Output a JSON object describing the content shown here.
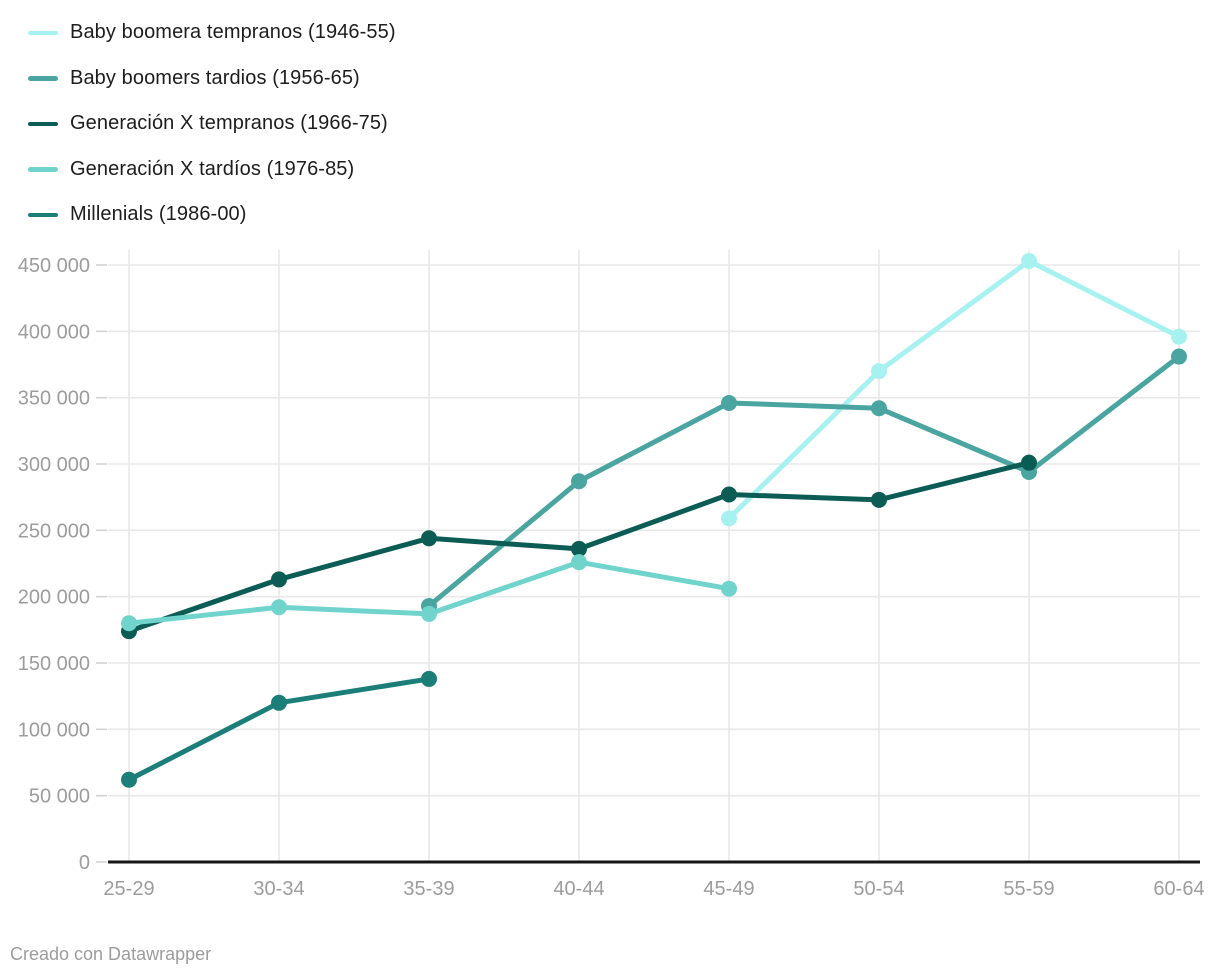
{
  "footer": {
    "credit": "Creado con Datawrapper"
  },
  "chart_data": {
    "type": "line",
    "title": "",
    "xlabel": "",
    "ylabel": "",
    "categories": [
      "25-29",
      "30-34",
      "35-39",
      "40-44",
      "45-49",
      "50-54",
      "55-59",
      "60-64"
    ],
    "series": [
      {
        "name": "Baby boomera tempranos (1946-55)",
        "color": "#a8f1f1",
        "values": [
          null,
          null,
          null,
          null,
          259000,
          370000,
          453000,
          396000
        ]
      },
      {
        "name": "Baby boomers tardios (1956-65)",
        "color": "#4aa5a0",
        "values": [
          null,
          null,
          193000,
          287000,
          346000,
          342000,
          294000,
          381000
        ]
      },
      {
        "name": "Generación X tempranos (1966-75)",
        "color": "#0b5c55",
        "values": [
          174000,
          213000,
          244000,
          236000,
          277000,
          273000,
          301000,
          null
        ]
      },
      {
        "name": "Generación X tardíos (1976-85)",
        "color": "#70d4cd",
        "values": [
          180000,
          192000,
          187000,
          226000,
          206000,
          null,
          null,
          null
        ]
      },
      {
        "name": "Millenials (1986-00)",
        "color": "#1b7e79",
        "values": [
          62000,
          120000,
          138000,
          null,
          null,
          null,
          null,
          null
        ]
      }
    ],
    "ylim": [
      0,
      450000
    ],
    "ytick_step": 50000,
    "ytick_labels": [
      "0",
      "50 000",
      "100 000",
      "150 000",
      "200 000",
      "250 000",
      "300 000",
      "350 000",
      "400 000",
      "450 000"
    ],
    "grid": true,
    "legend_position": "top-left",
    "styles": {
      "grid_color": "#e8e8e8",
      "axis_line_color": "#161616",
      "tick_label_color": "#9c9c9c",
      "tick_mark_color": "#d2d2d2"
    }
  }
}
